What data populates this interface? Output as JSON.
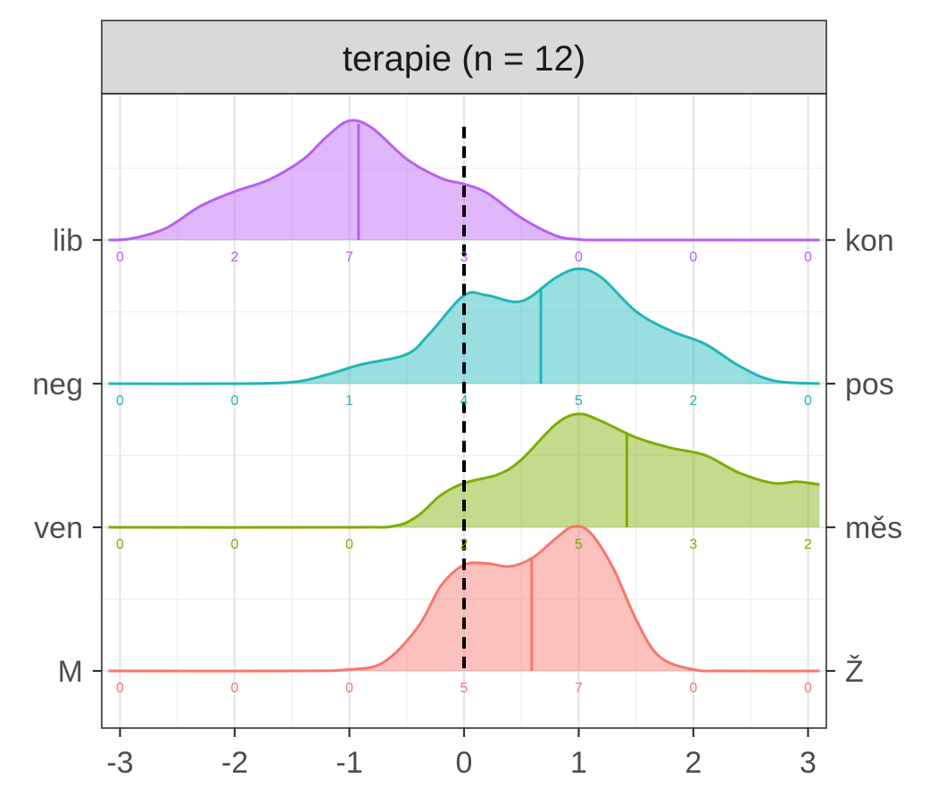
{
  "chart_data": {
    "type": "ridgeline",
    "facet_title": "terapie (n = 12)",
    "xlim": [
      -3,
      3
    ],
    "x_ticks": [
      -3,
      -2,
      -1,
      0,
      1,
      2,
      3
    ],
    "x_tick_labels": [
      "-3",
      "-2",
      "-1",
      "0",
      "1",
      "2",
      "3"
    ],
    "reference_line_x": 0,
    "count_positions": [
      -3,
      -2,
      -1,
      0,
      1,
      2,
      3
    ],
    "grid": true,
    "series": [
      {
        "left_label": "M",
        "right_label": "Ž",
        "color": "#f8766d",
        "mean": 0.59,
        "counts": [
          "0",
          "0",
          "0",
          "5",
          "7",
          "0",
          "0"
        ],
        "density": [
          [
            -3.1,
            0
          ],
          [
            -1.5,
            0
          ],
          [
            -1.0,
            0.01
          ],
          [
            -0.7,
            0.06
          ],
          [
            -0.4,
            0.3
          ],
          [
            -0.2,
            0.58
          ],
          [
            0,
            0.72
          ],
          [
            0.2,
            0.73
          ],
          [
            0.4,
            0.71
          ],
          [
            0.6,
            0.77
          ],
          [
            0.8,
            0.9
          ],
          [
            0.95,
            0.98
          ],
          [
            1.1,
            0.94
          ],
          [
            1.3,
            0.7
          ],
          [
            1.5,
            0.35
          ],
          [
            1.7,
            0.1
          ],
          [
            2.0,
            0.01
          ],
          [
            2.3,
            0
          ],
          [
            3.1,
            0
          ]
        ]
      },
      {
        "left_label": "ven",
        "right_label": "měs",
        "color": "#7cae00",
        "mean": 1.42,
        "counts": [
          "0",
          "0",
          "0",
          "2",
          "5",
          "3",
          "2"
        ],
        "density": [
          [
            -3.1,
            0
          ],
          [
            -1.0,
            0
          ],
          [
            -0.6,
            0.01
          ],
          [
            -0.4,
            0.08
          ],
          [
            -0.2,
            0.22
          ],
          [
            0,
            0.3
          ],
          [
            0.3,
            0.36
          ],
          [
            0.5,
            0.46
          ],
          [
            0.8,
            0.7
          ],
          [
            1.0,
            0.77
          ],
          [
            1.2,
            0.72
          ],
          [
            1.5,
            0.61
          ],
          [
            1.8,
            0.54
          ],
          [
            2.1,
            0.49
          ],
          [
            2.4,
            0.37
          ],
          [
            2.7,
            0.3
          ],
          [
            2.9,
            0.31
          ],
          [
            3.1,
            0.29
          ]
        ]
      },
      {
        "left_label": "neg",
        "right_label": "pos",
        "color": "#1fb6b8",
        "mean": 0.67,
        "counts": [
          "0",
          "0",
          "1",
          "4",
          "5",
          "2",
          "0"
        ],
        "density": [
          [
            -3.1,
            0
          ],
          [
            -2.0,
            0
          ],
          [
            -1.5,
            0.01
          ],
          [
            -1.2,
            0.06
          ],
          [
            -0.9,
            0.13
          ],
          [
            -0.5,
            0.2
          ],
          [
            -0.3,
            0.34
          ],
          [
            0,
            0.6
          ],
          [
            0.2,
            0.6
          ],
          [
            0.5,
            0.56
          ],
          [
            0.8,
            0.72
          ],
          [
            1.0,
            0.78
          ],
          [
            1.2,
            0.72
          ],
          [
            1.5,
            0.49
          ],
          [
            1.8,
            0.36
          ],
          [
            2.1,
            0.27
          ],
          [
            2.4,
            0.12
          ],
          [
            2.7,
            0.02
          ],
          [
            3.1,
            0
          ]
        ]
      },
      {
        "left_label": "lib",
        "right_label": "kon",
        "color": "#b75ff5",
        "mean": -0.92,
        "counts": [
          "0",
          "2",
          "7",
          "3",
          "0",
          "0",
          "0"
        ],
        "density": [
          [
            -3.1,
            0
          ],
          [
            -2.9,
            0.01
          ],
          [
            -2.6,
            0.08
          ],
          [
            -2.3,
            0.23
          ],
          [
            -2.0,
            0.33
          ],
          [
            -1.7,
            0.41
          ],
          [
            -1.4,
            0.55
          ],
          [
            -1.2,
            0.7
          ],
          [
            -1.0,
            0.81
          ],
          [
            -0.8,
            0.76
          ],
          [
            -0.5,
            0.55
          ],
          [
            -0.2,
            0.42
          ],
          [
            0,
            0.38
          ],
          [
            0.2,
            0.32
          ],
          [
            0.5,
            0.15
          ],
          [
            0.8,
            0.03
          ],
          [
            1.0,
            0.005
          ],
          [
            1.3,
            0
          ],
          [
            3.1,
            0
          ]
        ]
      }
    ]
  }
}
